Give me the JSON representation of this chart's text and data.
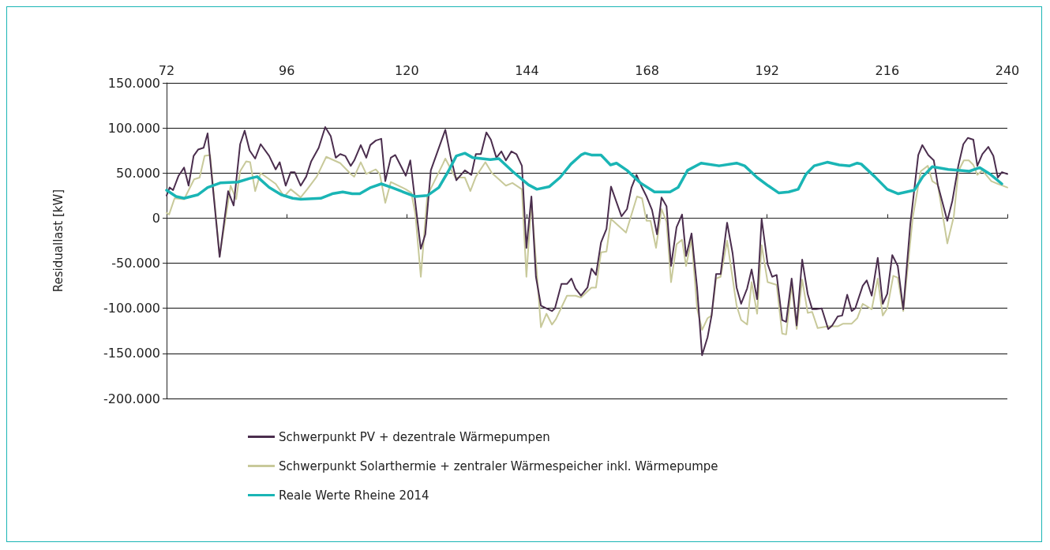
{
  "chart_data": {
    "type": "line",
    "ylabel": "Residuallast [kW]",
    "xlim": [
      72,
      240
    ],
    "xticks": [
      72,
      96,
      120,
      144,
      168,
      192,
      216,
      240
    ],
    "ylim": [
      -200000,
      150000
    ],
    "yticks": [
      {
        "value": -200000,
        "label": "-200.000"
      },
      {
        "value": -150000,
        "label": "-150.000"
      },
      {
        "value": -100000,
        "label": "-100.000"
      },
      {
        "value": -50000,
        "label": "-50.000"
      },
      {
        "value": 0,
        "label": "0"
      },
      {
        "value": 50000,
        "label": "50.000"
      },
      {
        "value": 100000,
        "label": "100.000"
      },
      {
        "value": 150000,
        "label": "150.000"
      }
    ],
    "grid": "y",
    "legend": "bottom",
    "marker": "none",
    "line_style": "solid",
    "series": [
      {
        "name": "Schwerpunkt PV + dezentrale Wärmepumpen",
        "color": "#4b2e4e",
        "x": [
          72.0,
          72.6,
          73.3,
          74.4,
          75.5,
          76.4,
          77.4,
          78.3,
          79.4,
          80.2,
          82.6,
          84.3,
          85.4,
          86.7,
          87.6,
          88.6,
          89.7,
          90.8,
          92.5,
          93.8,
          94.6,
          95.8,
          96.8,
          97.6,
          98.8,
          99.9,
          100.9,
          102.4,
          103.7,
          104.8,
          105.8,
          106.7,
          107.7,
          108.8,
          109.5,
          110.8,
          111.9,
          112.7,
          113.8,
          114.9,
          115.7,
          116.8,
          117.7,
          119.8,
          120.7,
          122.8,
          123.7,
          124.8,
          127.7,
          128.8,
          129.9,
          131.6,
          132.9,
          133.8,
          134.8,
          135.9,
          136.8,
          137.9,
          138.9,
          139.8,
          140.9,
          141.9,
          143.0,
          143.9,
          144.9,
          145.8,
          146.8,
          149.0,
          149.6,
          150.9,
          152.0,
          152.9,
          153.7,
          154.8,
          156.1,
          156.9,
          157.8,
          158.8,
          159.9,
          160.8,
          162.9,
          164.0,
          164.9,
          165.9,
          167.0,
          167.9,
          169.0,
          170.0,
          170.9,
          171.9,
          172.8,
          173.9,
          175.0,
          175.8,
          176.9,
          178.0,
          179.0,
          180.1,
          180.9,
          181.8,
          182.7,
          184.0,
          185.1,
          185.9,
          186.8,
          188.0,
          188.9,
          190.0,
          190.9,
          192.1,
          193.0,
          193.9,
          195.0,
          195.8,
          196.9,
          197.9,
          199.0,
          200.1,
          201.0,
          201.8,
          202.9,
          204.2,
          205.0,
          206.1,
          207.0,
          208.0,
          208.9,
          209.6,
          211.1,
          211.9,
          212.9,
          214.1,
          215.1,
          216.0,
          217.0,
          218.1,
          219.2,
          220.6,
          222.2,
          223.0,
          224.2,
          225.3,
          226.1,
          228.0,
          229.0,
          230.2,
          231.2,
          232.1,
          233.2,
          234.0,
          235.0,
          236.2,
          237.2,
          238.1,
          238.9,
          240.0
        ],
        "values": [
          25000,
          34000,
          31000,
          47000,
          56000,
          36000,
          69000,
          76000,
          78000,
          94000,
          -43000,
          30000,
          14000,
          82000,
          97000,
          75000,
          66000,
          82000,
          69000,
          54000,
          62000,
          36000,
          51000,
          51000,
          36000,
          46000,
          63000,
          78000,
          101000,
          91000,
          67000,
          71000,
          69000,
          58000,
          64000,
          81000,
          67000,
          81000,
          86000,
          88000,
          41000,
          67000,
          70000,
          47000,
          64000,
          -34000,
          -18000,
          53000,
          98000,
          67000,
          42000,
          53000,
          48000,
          71000,
          71000,
          95000,
          87000,
          67000,
          74000,
          64000,
          74000,
          71000,
          58000,
          -33000,
          24000,
          -65000,
          -97000,
          -103000,
          -100000,
          -73000,
          -73000,
          -67000,
          -78000,
          -86000,
          -77000,
          -56000,
          -63000,
          -27000,
          -12000,
          35000,
          2000,
          10000,
          34000,
          48000,
          34000,
          24000,
          9000,
          -18000,
          23000,
          13000,
          -53000,
          -10000,
          4000,
          -42000,
          -17000,
          -77000,
          -152000,
          -132000,
          -108000,
          -62000,
          -62000,
          -5000,
          -39000,
          -77000,
          -95000,
          -78000,
          -57000,
          -90000,
          -1000,
          -51000,
          -65000,
          -63000,
          -113000,
          -115000,
          -67000,
          -119000,
          -46000,
          -84000,
          -101000,
          -101000,
          -100000,
          -123000,
          -119000,
          -109000,
          -108000,
          -85000,
          -103000,
          -100000,
          -75000,
          -69000,
          -86000,
          -44000,
          -95000,
          -84000,
          -41000,
          -53000,
          -101000,
          -7000,
          70000,
          81000,
          70000,
          64000,
          37000,
          -3000,
          19000,
          58000,
          82000,
          89000,
          87000,
          58000,
          71000,
          79000,
          69000,
          45000,
          51000,
          49000
        ]
      },
      {
        "name": "Schwerpunkt Solarthermie + zentraler Wärmespeicher inkl. Wärmepumpe",
        "color": "#c8c99a",
        "x": [
          72.0,
          72.5,
          73.6,
          75.5,
          77.5,
          78.6,
          79.6,
          80.7,
          82.6,
          84.8,
          85.9,
          86.7,
          87.9,
          88.7,
          89.7,
          90.8,
          93.8,
          95.5,
          96.8,
          98.8,
          100.1,
          102.0,
          103.9,
          106.7,
          108.8,
          109.5,
          110.8,
          111.9,
          113.8,
          114.6,
          115.7,
          116.8,
          119.8,
          120.9,
          121.7,
          122.8,
          124.1,
          127.2,
          127.7,
          129.7,
          131.6,
          132.7,
          133.8,
          135.7,
          137.0,
          139.8,
          141.1,
          143.0,
          143.9,
          144.9,
          146.8,
          147.9,
          149.0,
          149.8,
          152.0,
          153.7,
          154.8,
          156.9,
          157.8,
          158.8,
          159.9,
          160.8,
          163.8,
          166.0,
          167.0,
          167.9,
          168.7,
          169.8,
          170.9,
          171.9,
          172.8,
          173.9,
          175.0,
          175.8,
          176.9,
          178.0,
          179.0,
          180.1,
          180.9,
          181.8,
          182.7,
          184.0,
          185.9,
          186.8,
          188.0,
          188.9,
          190.0,
          190.9,
          192.1,
          193.9,
          195.0,
          195.8,
          196.9,
          197.9,
          199.0,
          200.1,
          201.0,
          202.1,
          204.2,
          206.1,
          207.2,
          208.9,
          210.0,
          211.1,
          212.9,
          214.1,
          215.1,
          216.0,
          217.2,
          218.1,
          219.2,
          221.1,
          222.7,
          224.1,
          225.0,
          226.1,
          228.0,
          229.3,
          230.2,
          231.3,
          232.3,
          233.2,
          234.0,
          235.0,
          236.8,
          238.1,
          240.0
        ],
        "values": [
          6000,
          4000,
          22000,
          21000,
          43000,
          45000,
          69000,
          70000,
          -42000,
          36000,
          21000,
          52000,
          63000,
          62000,
          30000,
          50000,
          38000,
          24000,
          32000,
          23000,
          32000,
          46000,
          68000,
          61000,
          49000,
          46000,
          62000,
          49000,
          54000,
          49000,
          17000,
          40000,
          32000,
          28000,
          5000,
          -65000,
          25000,
          60000,
          66000,
          45000,
          45000,
          30000,
          46000,
          62000,
          50000,
          36000,
          39000,
          32000,
          -65000,
          19000,
          -121000,
          -106000,
          -118000,
          -112000,
          -86000,
          -86000,
          -88000,
          -77000,
          -77000,
          -38000,
          -37000,
          -1000,
          -16000,
          24000,
          22000,
          -3000,
          -3000,
          -33000,
          10000,
          -4000,
          -71000,
          -29000,
          -24000,
          -53000,
          -23000,
          -100000,
          -124000,
          -111000,
          -108000,
          -67000,
          -65000,
          -25000,
          -97000,
          -113000,
          -118000,
          -71000,
          -106000,
          -30000,
          -71000,
          -74000,
          -128000,
          -129000,
          -74000,
          -123000,
          -68000,
          -105000,
          -104000,
          -122000,
          -120000,
          -120000,
          -117000,
          -117000,
          -111000,
          -95000,
          -101000,
          -67000,
          -108000,
          -100000,
          -64000,
          -66000,
          -103000,
          1000,
          52000,
          58000,
          41000,
          37000,
          -28000,
          2000,
          52000,
          64000,
          64000,
          59000,
          48000,
          53000,
          41000,
          38000,
          34000
        ]
      },
      {
        "name": "Reale Werte Rheine 2014",
        "color": "#1ab5b5",
        "x": [
          72.0,
          73.9,
          75.5,
          78.3,
          80.2,
          82.7,
          86.2,
          88.6,
          90.1,
          92.5,
          94.9,
          97.2,
          98.8,
          102.8,
          105.1,
          107.2,
          109.1,
          110.6,
          112.8,
          114.9,
          117.0,
          119.3,
          121.7,
          124.1,
          126.4,
          128.3,
          129.9,
          131.6,
          133.2,
          136.7,
          138.4,
          141.1,
          144.3,
          146.0,
          148.5,
          150.6,
          152.8,
          154.8,
          155.6,
          156.9,
          158.8,
          160.7,
          161.9,
          164.0,
          166.7,
          169.5,
          172.6,
          174.2,
          176.1,
          178.8,
          182.4,
          185.9,
          187.5,
          190.0,
          192.2,
          194.3,
          196.3,
          198.2,
          199.8,
          201.4,
          204.0,
          206.4,
          208.5,
          210.0,
          210.8,
          213.5,
          216.0,
          218.2,
          221.4,
          223.1,
          225.0,
          228.2,
          230.2,
          232.4,
          234.5,
          236.5,
          238.9
        ],
        "values": [
          31000,
          24000,
          22000,
          26000,
          34000,
          39000,
          40000,
          44000,
          46000,
          34000,
          26000,
          22000,
          21000,
          22000,
          27000,
          29000,
          27000,
          27000,
          34000,
          38000,
          34000,
          29000,
          24000,
          25000,
          34000,
          52000,
          69000,
          72000,
          67000,
          65000,
          66000,
          52000,
          37000,
          32000,
          35000,
          45000,
          60000,
          70000,
          72000,
          70000,
          70000,
          59000,
          61000,
          53000,
          39000,
          29000,
          29000,
          34000,
          53000,
          61000,
          58000,
          61000,
          58000,
          45000,
          36000,
          28000,
          29000,
          32000,
          49000,
          58000,
          62000,
          59000,
          58000,
          61000,
          60000,
          46000,
          32000,
          27000,
          31000,
          46000,
          57000,
          54000,
          53000,
          52000,
          56000,
          49000,
          38000
        ]
      }
    ]
  }
}
